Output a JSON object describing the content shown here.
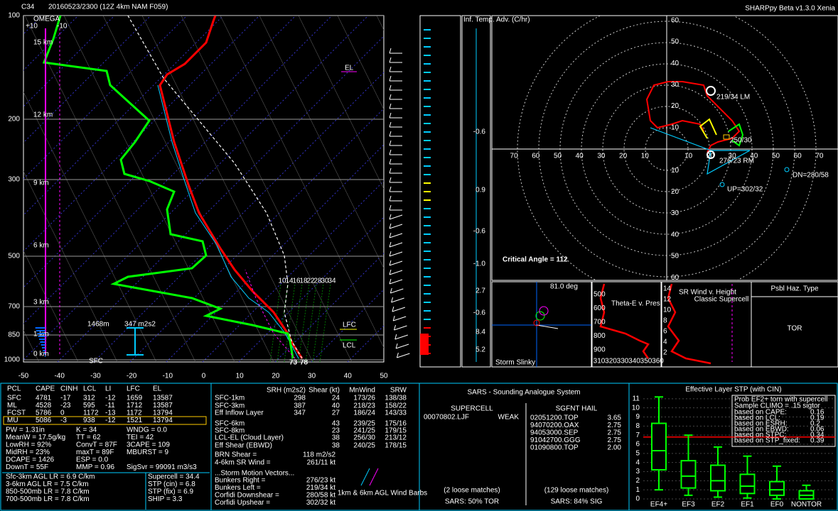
{
  "header": {
    "station": "C34",
    "run": "20160523/2300  (12Z  4km NAM  F059)",
    "version": "SHARPpy Beta v1.3.0 Xenia"
  },
  "skewt": {
    "pressure_labels": [
      "100",
      "200",
      "300",
      "500",
      "700",
      "850",
      "1000"
    ],
    "height_labels": [
      "15 km",
      "12 km",
      "9 km",
      "6 km",
      "3 km",
      "1 km",
      "0 km"
    ],
    "temp_labels": [
      "-50",
      "-40",
      "-30",
      "-20",
      "-10",
      "0",
      "10",
      "20",
      "30",
      "40",
      "50"
    ],
    "omega": {
      "title": "OMEGA",
      "plus": "+10",
      "minus": "-10"
    },
    "mixing_ratio_labels": [
      "10",
      "14",
      "16",
      "18",
      "22",
      "28",
      "30",
      "34"
    ],
    "el": "EL",
    "lfc": "LFC",
    "lcl": "LCL",
    "sfc": "SFC",
    "eff_inflow_depth": "1468m",
    "eff_srh": "347 m2s2",
    "sfc_td": "73",
    "sfc_t": "78"
  },
  "advection": {
    "title": "Inf. Temp. Adv. (C/hr)",
    "labels": [
      "-0.6",
      "0.9",
      "-0.6",
      "-1.0",
      "2.7",
      "-0.6",
      "8.4",
      "5.2"
    ]
  },
  "hodograph": {
    "y_labels": [
      "60",
      "50",
      "40",
      "30",
      "20",
      "10",
      "10",
      "20",
      "30",
      "40",
      "50",
      "60"
    ],
    "x_labels": [
      "70",
      "60",
      "50",
      "40",
      "30",
      "20",
      "10",
      "10",
      "20",
      "30",
      "40",
      "50",
      "60",
      "70"
    ],
    "lm": "219/34 LM",
    "rm": "276/23 RM",
    "dn": "DN=280/58",
    "up": "UP=302/32",
    "mean": "250/30",
    "critical_angle": "Critical Angle = 112"
  },
  "slinky": {
    "angle": "81.0 deg",
    "title": "Storm Slinky"
  },
  "theta_e": {
    "title": "Theta-E v. Pres",
    "y_labels": [
      "500",
      "600",
      "700",
      "800",
      "900"
    ],
    "x_labels": [
      "310",
      "320",
      "330",
      "340",
      "350",
      "360"
    ]
  },
  "sr_wind": {
    "title": "SR Wind v. Height",
    "y_labels": [
      "14",
      "12",
      "10",
      "8",
      "6",
      "4",
      "2"
    ],
    "label": "Classic Supercell"
  },
  "hazard": {
    "title": "Psbl Haz. Type",
    "value": "TOR"
  },
  "thermo": {
    "header": [
      "PCL",
      "CAPE",
      "CINH",
      "LCL",
      "LI",
      "LFC",
      "EL"
    ],
    "rows": [
      [
        "SFC",
        "4781",
        "-17",
        "312",
        "-12",
        "1659",
        "13587"
      ],
      [
        "ML",
        "4528",
        "-23",
        "595",
        "-11",
        "1712",
        "13587"
      ],
      [
        "FCST",
        "5786",
        "0",
        "1172",
        "-13",
        "1172",
        "13794"
      ],
      [
        "MU",
        "5086",
        "-3",
        "938",
        "-12",
        "1521",
        "13794"
      ]
    ],
    "col1": [
      "PW = 1.31in",
      "MeanW = 17.5g/kg",
      "LowRH = 92%",
      "MidRH = 23%",
      "DCAPE = 1426",
      "DownT = 55F"
    ],
    "col2": [
      "K = 34",
      "TT = 62",
      "ConvT = 87F",
      "maxT = 89F",
      "ESP = 0.0",
      "MMP = 0.96"
    ],
    "col3": [
      "WNDG = 0.0",
      "TEI = 42",
      "3CAPE = 109",
      "MBURST = 9",
      "SigSvr = 99091 m3/s3"
    ],
    "lapse": [
      "Sfc-3km AGL LR = 6.9 C/km",
      "3-6km AGL LR = 7.5 C/km",
      "850-500mb LR = 7.8 C/km",
      "700-500mb LR = 7.8 C/km"
    ],
    "severe": [
      "Supercell = 34.4",
      "STP (cin) = 6.8",
      "STP (fix) = 6.9",
      "SHIP = 3.3"
    ]
  },
  "kinematics": {
    "header": [
      "SRH (m2s2)",
      "Shear (kt)",
      "MnWind",
      "SRW"
    ],
    "rows": [
      {
        "label": "SFC-1km",
        "srh": "298",
        "shear": "24",
        "mnwind": "173/26",
        "srw": "138/38"
      },
      {
        "label": "SFC-3km",
        "srh": "387",
        "shear": "40",
        "mnwind": "218/23",
        "srw": "158/22"
      },
      {
        "label": "Eff Inflow Layer",
        "srh": "347",
        "shear": "27",
        "mnwind": "186/24",
        "srw": "143/33"
      },
      {
        "label": "SFC-6km",
        "shear": "43",
        "mnwind": "239/25",
        "srw": "175/16"
      },
      {
        "label": "SFC-8km",
        "shear": "23",
        "mnwind": "241/25",
        "srw": "179/15"
      },
      {
        "label": "LCL-EL (Cloud Layer)",
        "shear": "38",
        "mnwind": "256/30",
        "srw": "213/12"
      },
      {
        "label": "Eff Shear (EBWD)",
        "shear": "38",
        "mnwind": "240/25",
        "srw": "178/15"
      }
    ],
    "brn": [
      "BRN Shear =",
      "118 m2/s2"
    ],
    "sr46": [
      "4-6km SR Wind =",
      "261/11 kt"
    ],
    "vectors_title": "...Storm Motion Vectors...",
    "vectors": [
      [
        "Bunkers Right =",
        "276/23 kt"
      ],
      [
        "Bunkers Left =",
        "219/34 kt"
      ],
      [
        "Corfidi Downshear =",
        "280/58 kt"
      ],
      [
        "Corfidi Upshear =",
        "302/32 kt"
      ]
    ],
    "barb_caption": "1km & 6km AGL Wind Barbs"
  },
  "sars": {
    "title": "SARS - Sounding Analogue System",
    "supercell_title": "SUPERCELL",
    "hail_title": "SGFNT HAIL",
    "supercell_match": "00070802.LJF",
    "supercell_type": "WEAK",
    "hail": [
      [
        "02051200.TOP",
        "3.65"
      ],
      [
        "94070200.OAX",
        "2.75"
      ],
      [
        "94053000.SEP",
        "2.75"
      ],
      [
        "91042700.GGG",
        "2.75"
      ],
      [
        "01090800.TOP",
        "2.00"
      ]
    ],
    "supercell_loose": "(2 loose matches)",
    "hail_loose": "(129 loose matches)",
    "supercell_result": "SARS: 50% TOR",
    "hail_result": "SARS: 84% SIG"
  },
  "stp": {
    "title": "Effective Layer STP (with CIN)",
    "categories": [
      "EF4+",
      "EF3",
      "EF2",
      "EF1",
      "EF0",
      "NONTOR"
    ],
    "yticks": [
      0,
      1,
      2,
      3,
      4,
      5,
      6,
      7,
      8,
      9,
      10,
      11
    ],
    "ylim": [
      0,
      11.3
    ],
    "current": 6.8,
    "boxes": [
      [
        1.0,
        3.2,
        5.3,
        8.3,
        11.2
      ],
      [
        0.4,
        1.2,
        2.5,
        4.2,
        7.0
      ],
      [
        0.2,
        0.9,
        2.0,
        3.7,
        5.7
      ],
      [
        0.1,
        0.6,
        1.4,
        2.7,
        4.7
      ],
      [
        0.0,
        0.4,
        1.0,
        1.9,
        3.6
      ],
      [
        0.0,
        0.0,
        0.4,
        0.9,
        1.5
      ]
    ],
    "legend_title": "Prob EF2+ torn with supercell",
    "legend_sub": "Sample CLIMO = .15 sigtor",
    "probs": [
      [
        "based on CAPE:",
        "0.16"
      ],
      [
        "based on LCL:",
        "0.19"
      ],
      [
        "based on ESRH:",
        "0.2"
      ],
      [
        "based on EBWD:",
        "0.06"
      ],
      [
        "based on STPC:",
        "0.34"
      ],
      [
        "based on STP_fixed:",
        "0.39"
      ]
    ]
  }
}
